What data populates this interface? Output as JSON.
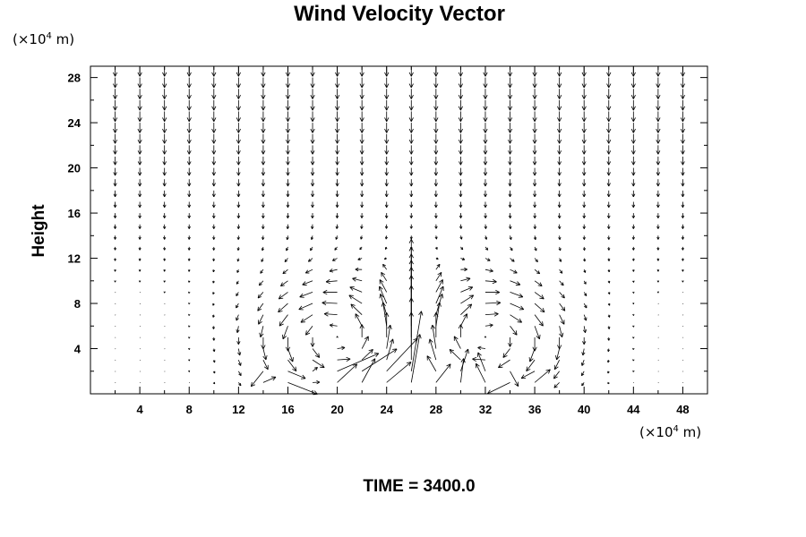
{
  "title": "Wind Velocity Vector",
  "footer": "TIME = 3400.0",
  "chart_data": {
    "type": "vector_field",
    "title": "Wind Velocity Vector",
    "ylabel": "Height",
    "xlabel": "",
    "x_unit": {
      "prefix": "(×10",
      "exp": "4",
      "suffix": " m)"
    },
    "y_unit": {
      "prefix": "(×10",
      "exp": "4",
      "suffix": " m)"
    },
    "xlim": [
      0,
      50
    ],
    "ylim": [
      0,
      29
    ],
    "x_ticks": [
      4,
      8,
      12,
      16,
      20,
      24,
      28,
      32,
      36,
      40,
      44,
      48
    ],
    "y_ticks": [
      4,
      8,
      12,
      16,
      20,
      24,
      28
    ],
    "grid": false,
    "vectors": {
      "x_start": 2,
      "x_step": 2,
      "x_count": 24,
      "y_start": 1,
      "y_step": 1,
      "y_count": 29,
      "scale_note": "arrow components in axis units per unit velocity",
      "features": [
        {
          "kind": "subsidence",
          "description": "downward flow aloft across domain",
          "max_w": -1.0
        },
        {
          "kind": "vortex",
          "center_x": 20,
          "center_z": 5,
          "sense": "counterclockwise",
          "strength": 1.0
        },
        {
          "kind": "vortex",
          "center_x": 32,
          "center_z": 5,
          "sense": "clockwise",
          "strength": 1.0
        },
        {
          "kind": "updraft",
          "center_x": 26,
          "top_z": 11,
          "strength": 1.0
        },
        {
          "kind": "surface_turbulence",
          "x_range": [
            14,
            36
          ],
          "z_max": 2
        }
      ]
    }
  }
}
